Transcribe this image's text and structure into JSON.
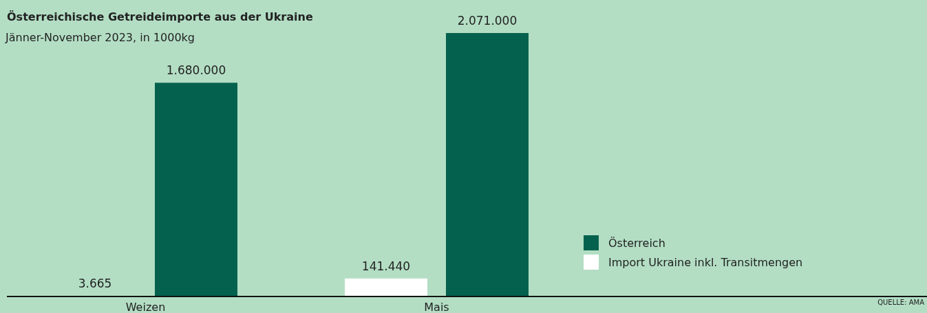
{
  "chart_data": {
    "type": "bar",
    "title": "Österreichische Getreideimporte aus der Ukraine",
    "subtitle": "Jänner-November 2023, in 1000kg",
    "categories": [
      "Weizen",
      "Mais"
    ],
    "series": [
      {
        "name": "Import Ukraine inkl. Transitmengen",
        "color": "#ffffff",
        "values": [
          3665,
          141440
        ],
        "value_labels": [
          "3.665",
          "141.440"
        ]
      },
      {
        "name": "Österreich",
        "color": "#04614e",
        "values": [
          1680000,
          2071000
        ],
        "value_labels": [
          "1.680.000",
          "2.071.000"
        ]
      }
    ],
    "legend": "right",
    "grid": false,
    "annotations": [
      "QUELLE: AMA"
    ]
  }
}
